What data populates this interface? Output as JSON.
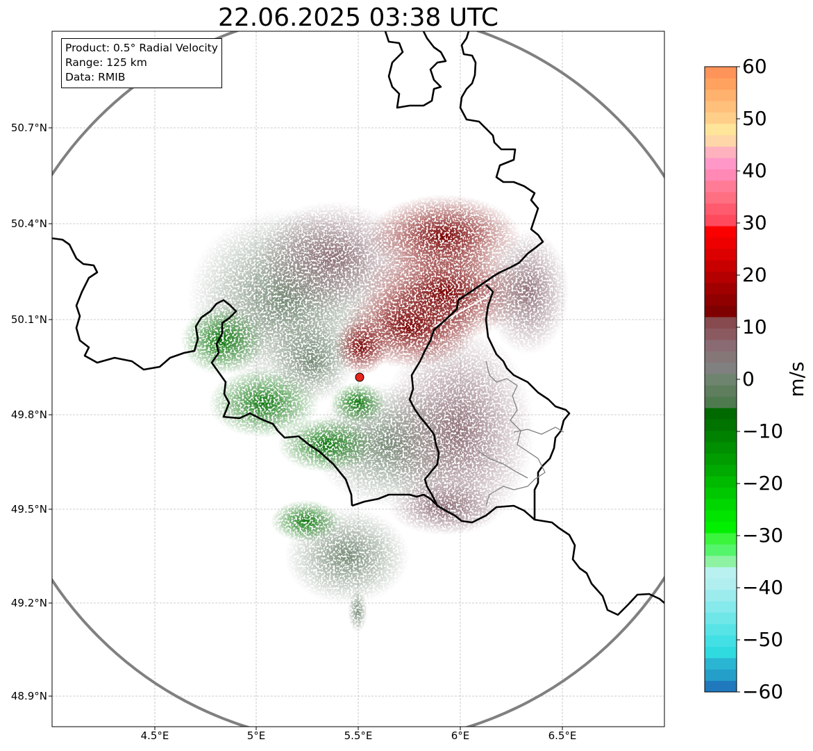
{
  "title": "22.06.2025 03:38 UTC",
  "info_box": {
    "product": "Product: 0.5° Radial Velocity",
    "range": "Range: 125 km",
    "data": "Data: RMIB"
  },
  "axes": {
    "lat_ticks": [
      "50.7°N",
      "50.4°N",
      "50.1°N",
      "49.8°N",
      "49.5°N",
      "49.2°N",
      "48.9°N"
    ],
    "lon_ticks": [
      "4.5°E",
      "5°E",
      "5.5°E",
      "6°E",
      "6.5°E"
    ],
    "grid": "dashed light gray"
  },
  "radar_site": {
    "lon": 5.505,
    "lat": 49.914,
    "marker_color": "#e8261c"
  },
  "range_ring_color": "#808080",
  "colorbar": {
    "unit": "m/s",
    "min": -60,
    "max": 60,
    "tick_labels": [
      "60",
      "50",
      "40",
      "30",
      "20",
      "10",
      "0",
      "−10",
      "−20",
      "−30",
      "−40",
      "−50",
      "−60"
    ],
    "colors": [
      "#2078bd",
      "#239fca",
      "#2ab5d3",
      "#30dbe0",
      "#42e0e4",
      "#58e4e6",
      "#6fe6e8",
      "#86e9eb",
      "#9cebed",
      "#b0eeef",
      "#b9f1f1",
      "#8ef2a3",
      "#55f56b",
      "#3af53c",
      "#00f000",
      "#00e400",
      "#00d600",
      "#00c800",
      "#00ba00",
      "#00aa00",
      "#009c00",
      "#008f00",
      "#008200",
      "#007300",
      "#006a00",
      "#4f7a4f",
      "#5e7e5e",
      "#6f846f",
      "#808080",
      "#857777",
      "#8a6b73",
      "#8a5a60",
      "#874a4e",
      "#7f0000",
      "#900000",
      "#a00000",
      "#b40000",
      "#c80000",
      "#dc0000",
      "#ee0000",
      "#fa0000",
      "#ff4a5e",
      "#ff5a6e",
      "#ff6f82",
      "#ff7b96",
      "#ff88b4",
      "#ff98c8",
      "#ffb2be",
      "#ffd6a8",
      "#ffe59a",
      "#ffcf89",
      "#ffc07c",
      "#ffb26e",
      "#ffa25f",
      "#ff945a"
    ]
  },
  "colors": {
    "strong_outbound": "#7f0000",
    "weak_outbound": "#8a6b73",
    "near_zero": "#6f846f",
    "strong_inbound": "#007000",
    "border": "#000000",
    "sub_border": "#808080"
  }
}
